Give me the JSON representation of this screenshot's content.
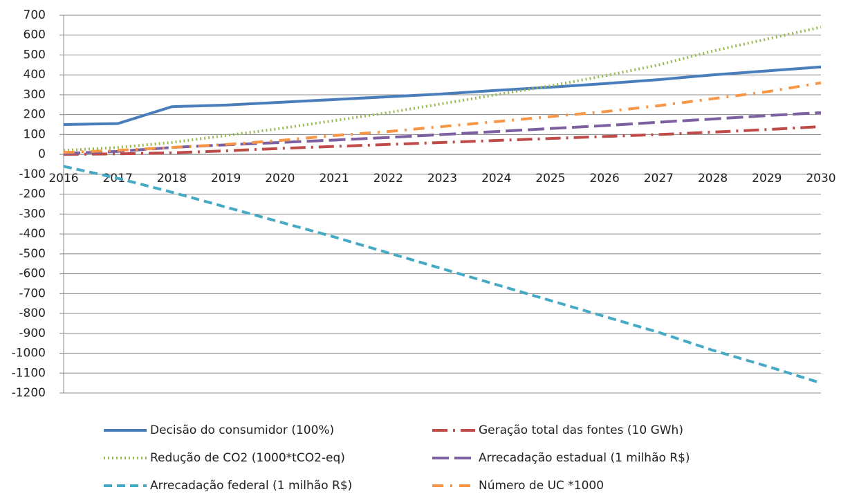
{
  "chart_data": {
    "type": "line",
    "categories": [
      "2016",
      "2017",
      "2018",
      "2019",
      "2020",
      "2021",
      "2022",
      "2023",
      "2024",
      "2025",
      "2026",
      "2027",
      "2028",
      "2029",
      "2030"
    ],
    "ylim": [
      -1200,
      700
    ],
    "yticks": [
      700,
      600,
      500,
      400,
      300,
      200,
      100,
      0,
      -100,
      -200,
      -300,
      -400,
      -500,
      -600,
      -700,
      -800,
      -900,
      -1000,
      -1100,
      -1200
    ],
    "grid": true,
    "legend": "bottom",
    "series": [
      {
        "name": "Decisão do consumidor (100%)",
        "color": "#4a7ebb",
        "dash": "none",
        "values": [
          150,
          155,
          240,
          248,
          262,
          276,
          290,
          304,
          322,
          338,
          356,
          376,
          400,
          420,
          440
        ]
      },
      {
        "name": "Geração total das fontes (10 GWh)",
        "color": "#be4b48",
        "dash": "22 8 3 8",
        "values": [
          0,
          3,
          8,
          18,
          30,
          40,
          50,
          60,
          70,
          80,
          90,
          100,
          112,
          125,
          140
        ]
      },
      {
        "name": "Redução de CO2 (1000*tCO2-eq)",
        "color": "#98b954",
        "dash": "2 4",
        "values": [
          20,
          35,
          60,
          95,
          130,
          170,
          210,
          255,
          300,
          345,
          395,
          450,
          520,
          580,
          640
        ]
      },
      {
        "name": "Arrecadação estadual (1 milhão R$)",
        "color": "#7d60a0",
        "dash": "24 8",
        "values": [
          5,
          15,
          35,
          48,
          60,
          72,
          85,
          100,
          115,
          130,
          145,
          162,
          178,
          195,
          210
        ]
      },
      {
        "name": "Arrecadação federal (1 milhão R$)",
        "color": "#46aac5",
        "dash": "12 7",
        "values": [
          -60,
          -120,
          -190,
          -265,
          -340,
          -415,
          -495,
          -575,
          -655,
          -735,
          -815,
          -895,
          -985,
          -1065,
          -1150
        ]
      },
      {
        "name": "Número de UC *1000",
        "color": "#f79646",
        "dash": "16 10 3 10",
        "values": [
          10,
          20,
          35,
          50,
          70,
          95,
          115,
          140,
          165,
          190,
          215,
          245,
          280,
          315,
          360
        ]
      }
    ]
  }
}
